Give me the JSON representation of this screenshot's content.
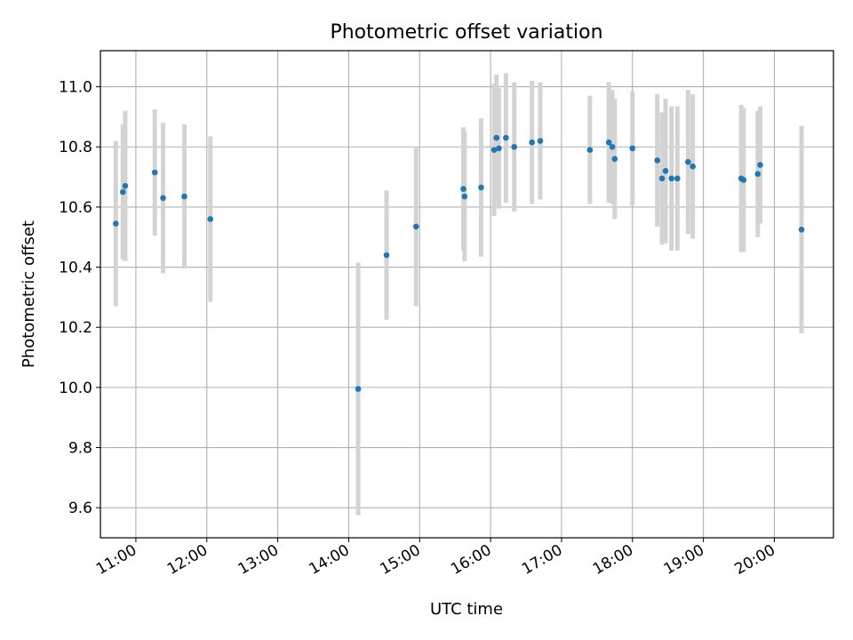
{
  "chart_data": {
    "type": "scatter",
    "title": "Photometric offset variation",
    "xlabel": "UTC time",
    "ylabel": "Photometric offset",
    "xlim": [
      "10:30",
      "20:50"
    ],
    "ylim": [
      9.5,
      11.12
    ],
    "grid": true,
    "x_ticks": [
      "11:00",
      "12:00",
      "13:00",
      "14:00",
      "15:00",
      "16:00",
      "17:00",
      "18:00",
      "19:00",
      "20:00"
    ],
    "y_ticks": [
      "9.6",
      "9.8",
      "10.0",
      "10.2",
      "10.4",
      "10.6",
      "10.8",
      "11.0"
    ],
    "colors": {
      "marker": "#1f77b4",
      "errorbar": "#d3d3d3",
      "grid": "#b0b0b0"
    },
    "series": [
      {
        "points": [
          {
            "x": "10:43",
            "y": 10.545,
            "err": 0.275
          },
          {
            "x": "10:49",
            "y": 10.65,
            "err": 0.225
          },
          {
            "x": "10:51",
            "y": 10.67,
            "err": 0.25
          },
          {
            "x": "11:16",
            "y": 10.715,
            "err": 0.21
          },
          {
            "x": "11:23",
            "y": 10.63,
            "err": 0.25
          },
          {
            "x": "11:41",
            "y": 10.635,
            "err": 0.24
          },
          {
            "x": "12:03",
            "y": 10.56,
            "err": 0.275
          },
          {
            "x": "14:08",
            "y": 9.995,
            "err": 0.42
          },
          {
            "x": "14:32",
            "y": 10.44,
            "err": 0.215
          },
          {
            "x": "14:57",
            "y": 10.535,
            "err": 0.265
          },
          {
            "x": "15:37",
            "y": 10.66,
            "err": 0.205
          },
          {
            "x": "15:38",
            "y": 10.635,
            "err": 0.215
          },
          {
            "x": "15:52",
            "y": 10.665,
            "err": 0.23
          },
          {
            "x": "16:03",
            "y": 10.79,
            "err": 0.22
          },
          {
            "x": "16:05",
            "y": 10.83,
            "err": 0.21
          },
          {
            "x": "16:07",
            "y": 10.795,
            "err": 0.2
          },
          {
            "x": "16:13",
            "y": 10.83,
            "err": 0.215
          },
          {
            "x": "16:20",
            "y": 10.8,
            "err": 0.215
          },
          {
            "x": "16:35",
            "y": 10.815,
            "err": 0.205
          },
          {
            "x": "16:42",
            "y": 10.82,
            "err": 0.195
          },
          {
            "x": "17:24",
            "y": 10.79,
            "err": 0.18
          },
          {
            "x": "17:40",
            "y": 10.815,
            "err": 0.2
          },
          {
            "x": "17:43",
            "y": 10.8,
            "err": 0.19
          },
          {
            "x": "17:45",
            "y": 10.76,
            "err": 0.2
          },
          {
            "x": "17:60",
            "y": 10.795,
            "err": 0.19
          },
          {
            "x": "18:21",
            "y": 10.755,
            "err": 0.22
          },
          {
            "x": "18:25",
            "y": 10.695,
            "err": 0.22
          },
          {
            "x": "18:28",
            "y": 10.72,
            "err": 0.24
          },
          {
            "x": "18:33",
            "y": 10.695,
            "err": 0.24
          },
          {
            "x": "18:38",
            "y": 10.695,
            "err": 0.24
          },
          {
            "x": "18:47",
            "y": 10.75,
            "err": 0.24
          },
          {
            "x": "18:51",
            "y": 10.735,
            "err": 0.24
          },
          {
            "x": "19:32",
            "y": 10.695,
            "err": 0.245
          },
          {
            "x": "19:34",
            "y": 10.69,
            "err": 0.24
          },
          {
            "x": "19:46",
            "y": 10.71,
            "err": 0.21
          },
          {
            "x": "19:48",
            "y": 10.74,
            "err": 0.195
          },
          {
            "x": "20:23",
            "y": 10.525,
            "err": 0.345
          }
        ]
      }
    ]
  }
}
